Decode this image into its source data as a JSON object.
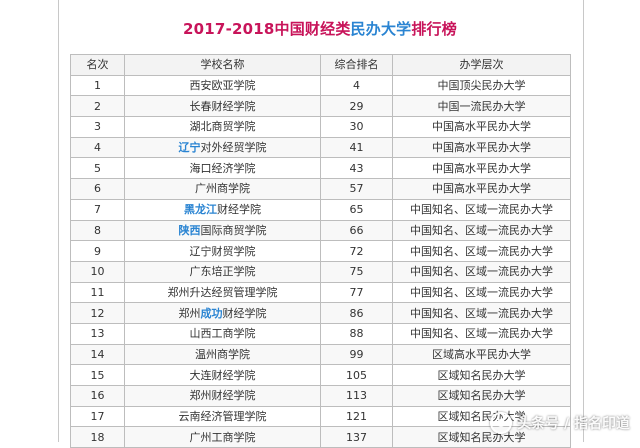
{
  "title": {
    "prefix": "2017-2018中国财经类",
    "highlight": "民办大学",
    "suffix": "排行榜"
  },
  "headers": [
    "名次",
    "学校名称",
    "综合排名",
    "办学层次"
  ],
  "rows": [
    {
      "rank": "1",
      "name_hl": "",
      "name": "西安欧亚学院",
      "score": "4",
      "level": "中国顶尖民办大学"
    },
    {
      "rank": "2",
      "name_hl": "",
      "name": "长春财经学院",
      "score": "29",
      "level": "中国一流民办大学"
    },
    {
      "rank": "3",
      "name_hl": "",
      "name": "湖北商贸学院",
      "score": "30",
      "level": "中国高水平民办大学"
    },
    {
      "rank": "4",
      "name_hl": "辽宁",
      "name": "对外经贸学院",
      "score": "41",
      "level": "中国高水平民办大学"
    },
    {
      "rank": "5",
      "name_hl": "",
      "name": "海口经济学院",
      "score": "43",
      "level": "中国高水平民办大学"
    },
    {
      "rank": "6",
      "name_hl": "",
      "name": "广州商学院",
      "score": "57",
      "level": "中国高水平民办大学"
    },
    {
      "rank": "7",
      "name_hl": "黑龙江",
      "name": "财经学院",
      "score": "65",
      "level": "中国知名、区域一流民办大学"
    },
    {
      "rank": "8",
      "name_hl": "陕西",
      "name": "国际商贸学院",
      "score": "66",
      "level": "中国知名、区域一流民办大学"
    },
    {
      "rank": "9",
      "name_hl": "",
      "name": "辽宁财贸学院",
      "score": "72",
      "level": "中国知名、区域一流民办大学"
    },
    {
      "rank": "10",
      "name_hl": "",
      "name": "广东培正学院",
      "score": "75",
      "level": "中国知名、区域一流民办大学"
    },
    {
      "rank": "11",
      "name_hl": "",
      "name": "郑州升达经贸管理学院",
      "score": "77",
      "level": "中国知名、区域一流民办大学"
    },
    {
      "rank": "12",
      "name_hl": "",
      "name": "郑州",
      "name_hl2": "成功",
      "name2": "财经学院",
      "score": "86",
      "level": "中国知名、区域一流民办大学"
    },
    {
      "rank": "13",
      "name_hl": "",
      "name": "山西工商学院",
      "score": "88",
      "level": "中国知名、区域一流民办大学"
    },
    {
      "rank": "14",
      "name_hl": "",
      "name": "温州商学院",
      "score": "99",
      "level": "区域高水平民办大学"
    },
    {
      "rank": "15",
      "name_hl": "",
      "name": "大连财经学院",
      "score": "105",
      "level": "区域知名民办大学"
    },
    {
      "rank": "16",
      "name_hl": "",
      "name": "郑州财经学院",
      "score": "113",
      "level": "区域知名民办大学"
    },
    {
      "rank": "17",
      "name_hl": "",
      "name": "云南经济管理学院",
      "score": "121",
      "level": "区域知名民办大学"
    },
    {
      "rank": "18",
      "name_hl": "",
      "name": "广州工商学院",
      "score": "137",
      "level": "区域知名民办大学"
    }
  ],
  "watermark": {
    "text": "头条号 / 指名印道",
    "icon": "toutiao-logo-icon"
  },
  "colors": {
    "title": "#c8145a",
    "highlight": "#2a84d2",
    "border": "#bdbdbd"
  }
}
